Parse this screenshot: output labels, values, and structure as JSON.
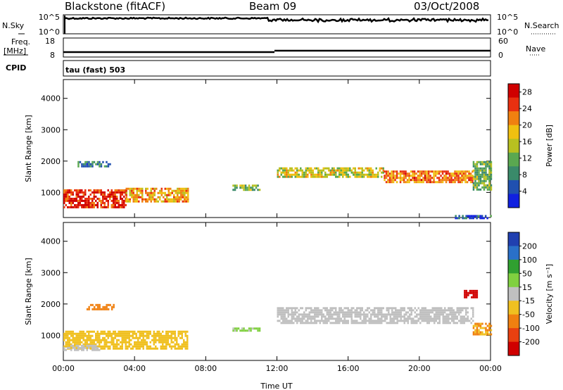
{
  "header": {
    "station": "Blackstone (fitACF)",
    "beam": "Beam 09",
    "date": "03/Oct/2008"
  },
  "noise_panel": {
    "left_label": "N.Sky",
    "left_ticks": [
      "10^5",
      "10^0"
    ],
    "right_ticks": [
      "10^5",
      "10^0"
    ],
    "right_label": "N.Search"
  },
  "freq_panel": {
    "left_label_1": "Freq.",
    "left_label_2": "[MHz]",
    "left_ticks": [
      "18",
      "8"
    ],
    "right_ticks": [
      "60",
      "0"
    ],
    "right_label": "Nave"
  },
  "cpid": {
    "label": "CPID",
    "program": "tau (fast) 503"
  },
  "chart_data": [
    {
      "type": "heatmap",
      "name": "power",
      "ylabel": "Slant Range [km]",
      "xlabel": "Time UT",
      "xlim": [
        0,
        24
      ],
      "ylim": [
        200,
        4600
      ],
      "yticks": [
        "1000",
        "2000",
        "3000",
        "4000"
      ],
      "xticks": [
        "00:00",
        "04:00",
        "08:00",
        "12:00",
        "16:00",
        "20:00",
        "00:00"
      ],
      "colorbar": {
        "label": "Power [dB]",
        "ticks": [
          "4",
          "8",
          "12",
          "16",
          "20",
          "24",
          "28"
        ],
        "range": [
          0,
          30
        ],
        "colors": [
          "#1020e0",
          "#2050b0",
          "#3a8a6a",
          "#5aa850",
          "#b8c020",
          "#f0c010",
          "#f08010",
          "#e83010",
          "#d00000"
        ]
      },
      "echo_bands": [
        {
          "t_start": 0.0,
          "t_end": 3.5,
          "r_low": 500,
          "r_high": 1100,
          "level": 26
        },
        {
          "t_start": 3.5,
          "t_end": 7.0,
          "r_low": 700,
          "r_high": 1150,
          "level": 20
        },
        {
          "t_start": 0.8,
          "t_end": 2.6,
          "r_low": 1850,
          "r_high": 2000,
          "level": 8
        },
        {
          "t_start": 9.5,
          "t_end": 11.0,
          "r_low": 1100,
          "r_high": 1250,
          "level": 12
        },
        {
          "t_start": 12.0,
          "t_end": 18.0,
          "r_low": 1500,
          "r_high": 1800,
          "level": 16
        },
        {
          "t_start": 18.0,
          "t_end": 23.0,
          "r_low": 1350,
          "r_high": 1700,
          "level": 22
        },
        {
          "t_start": 23.0,
          "t_end": 24.0,
          "r_low": 1100,
          "r_high": 2000,
          "level": 12
        },
        {
          "t_start": 22.0,
          "t_end": 24.0,
          "r_low": 200,
          "r_high": 280,
          "level": 6
        }
      ]
    },
    {
      "type": "heatmap",
      "name": "velocity",
      "ylabel": "Slant Range [km]",
      "xlabel": "Time UT",
      "xlim": [
        0,
        24
      ],
      "ylim": [
        200,
        4600
      ],
      "yticks": [
        "1000",
        "2000",
        "3000",
        "4000"
      ],
      "xticks": [
        "00:00",
        "04:00",
        "08:00",
        "12:00",
        "16:00",
        "20:00",
        "00:00"
      ],
      "colorbar": {
        "label": "Velocity [m s⁻¹]",
        "ticks": [
          "200",
          "100",
          "50",
          "15",
          "-15",
          "-50",
          "-100",
          "-200"
        ],
        "range": [
          -250,
          250
        ],
        "colors": [
          "#2040b0",
          "#2a70c8",
          "#30a030",
          "#80d040",
          "#c0c0c0",
          "#f0c020",
          "#f08010",
          "#e84010",
          "#d00000"
        ]
      },
      "echo_bands": [
        {
          "t_start": 0.0,
          "t_end": 7.0,
          "r_low": 600,
          "r_high": 1150,
          "level": -60
        },
        {
          "t_start": 0.0,
          "t_end": 2.0,
          "r_low": 500,
          "r_high": 700,
          "level": -15
        },
        {
          "t_start": 1.3,
          "t_end": 2.8,
          "r_low": 1850,
          "r_high": 2000,
          "level": -100
        },
        {
          "t_start": 9.5,
          "t_end": 11.0,
          "r_low": 1150,
          "r_high": 1250,
          "level": 40
        },
        {
          "t_start": 12.0,
          "t_end": 23.0,
          "r_low": 1400,
          "r_high": 1900,
          "level": 0
        },
        {
          "t_start": 23.0,
          "t_end": 24.0,
          "r_low": 1000,
          "r_high": 1400,
          "level": -80
        },
        {
          "t_start": 22.5,
          "t_end": 23.2,
          "r_low": 2200,
          "r_high": 2450,
          "level": -220
        }
      ]
    }
  ]
}
